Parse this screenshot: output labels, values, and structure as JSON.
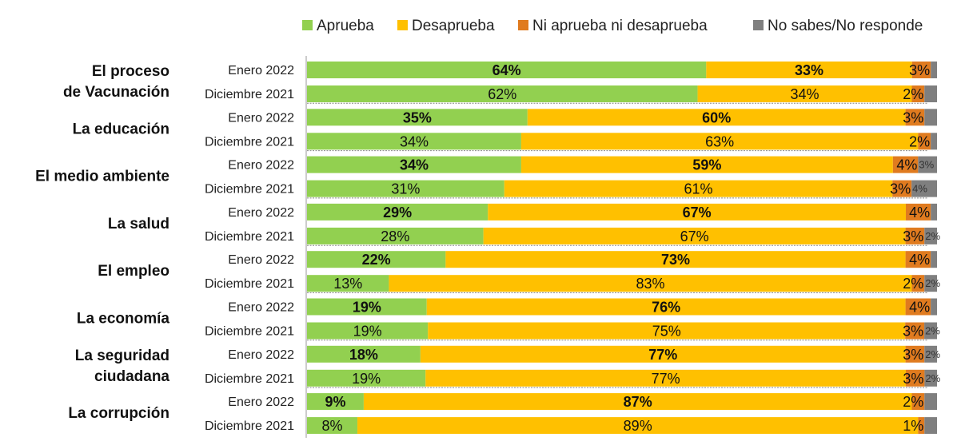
{
  "chart_data": {
    "type": "bar",
    "orientation": "horizontal-stacked-100",
    "legend_position": "top-right",
    "legend": [
      "Aprueba",
      "Desaprueba",
      "Ni aprueba ni desaprueba",
      "No sabes/No responde"
    ],
    "colors": [
      "#92d050",
      "#ffc000",
      "#e07b1f",
      "#7f7f7f"
    ],
    "periods": [
      "Enero 2022",
      "Diciembre 2021"
    ],
    "groups": [
      {
        "category": "El proceso de Vacunación",
        "rows": [
          {
            "period": "Enero 2022",
            "values": [
              64,
              33,
              3,
              1
            ],
            "labels": [
              "64%",
              "33%",
              "3%",
              ""
            ]
          },
          {
            "period": "Diciembre 2021",
            "values": [
              62,
              34,
              2,
              2
            ],
            "labels": [
              "62%",
              "34%",
              "2%",
              ""
            ]
          }
        ]
      },
      {
        "category": "La educación",
        "rows": [
          {
            "period": "Enero 2022",
            "values": [
              35,
              60,
              3,
              2
            ],
            "labels": [
              "35%",
              "60%",
              "3%",
              ""
            ]
          },
          {
            "period": "Diciembre 2021",
            "values": [
              34,
              63,
              2,
              1
            ],
            "labels": [
              "34%",
              "63%",
              "2%",
              ""
            ]
          }
        ]
      },
      {
        "category": "El medio ambiente",
        "rows": [
          {
            "period": "Enero 2022",
            "values": [
              34,
              59,
              4,
              3
            ],
            "labels": [
              "34%",
              "59%",
              "4%",
              "3%"
            ]
          },
          {
            "period": "Diciembre 2021",
            "values": [
              31,
              61,
              3,
              4
            ],
            "labels": [
              "31%",
              "61%",
              "3%",
              "4%"
            ]
          }
        ]
      },
      {
        "category": "La salud",
        "rows": [
          {
            "period": "Enero 2022",
            "values": [
              29,
              67,
              4,
              1
            ],
            "labels": [
              "29%",
              "67%",
              "4%",
              ""
            ]
          },
          {
            "period": "Diciembre 2021",
            "values": [
              28,
              67,
              3,
              2
            ],
            "labels": [
              "28%",
              "67%",
              "3%",
              "2%"
            ]
          }
        ]
      },
      {
        "category": "El empleo",
        "rows": [
          {
            "period": "Enero 2022",
            "values": [
              22,
              73,
              4,
              1
            ],
            "labels": [
              "22%",
              "73%",
              "4%",
              ""
            ]
          },
          {
            "period": "Diciembre 2021",
            "values": [
              13,
              83,
              2,
              2
            ],
            "labels": [
              "13%",
              "83%",
              "2%",
              "2%"
            ]
          }
        ]
      },
      {
        "category": "La economía",
        "rows": [
          {
            "period": "Enero 2022",
            "values": [
              19,
              76,
              4,
              1
            ],
            "labels": [
              "19%",
              "76%",
              "4%",
              ""
            ]
          },
          {
            "period": "Diciembre 2021",
            "values": [
              19,
              75,
              3,
              2
            ],
            "labels": [
              "19%",
              "75%",
              "3%",
              "2%"
            ]
          }
        ]
      },
      {
        "category": "La seguridad ciudadana",
        "rows": [
          {
            "period": "Enero 2022",
            "values": [
              18,
              77,
              3,
              2
            ],
            "labels": [
              "18%",
              "77%",
              "3%",
              "2%"
            ]
          },
          {
            "period": "Diciembre 2021",
            "values": [
              19,
              77,
              3,
              2
            ],
            "labels": [
              "19%",
              "77%",
              "3%",
              "2%"
            ]
          }
        ]
      },
      {
        "category": "La corrupción",
        "rows": [
          {
            "period": "Enero 2022",
            "values": [
              9,
              87,
              2,
              2
            ],
            "labels": [
              "9%",
              "87%",
              "2%",
              ""
            ]
          },
          {
            "period": "Diciembre 2021",
            "values": [
              8,
              89,
              1,
              2
            ],
            "labels": [
              "8%",
              "89%",
              "1%",
              ""
            ]
          }
        ]
      }
    ]
  }
}
